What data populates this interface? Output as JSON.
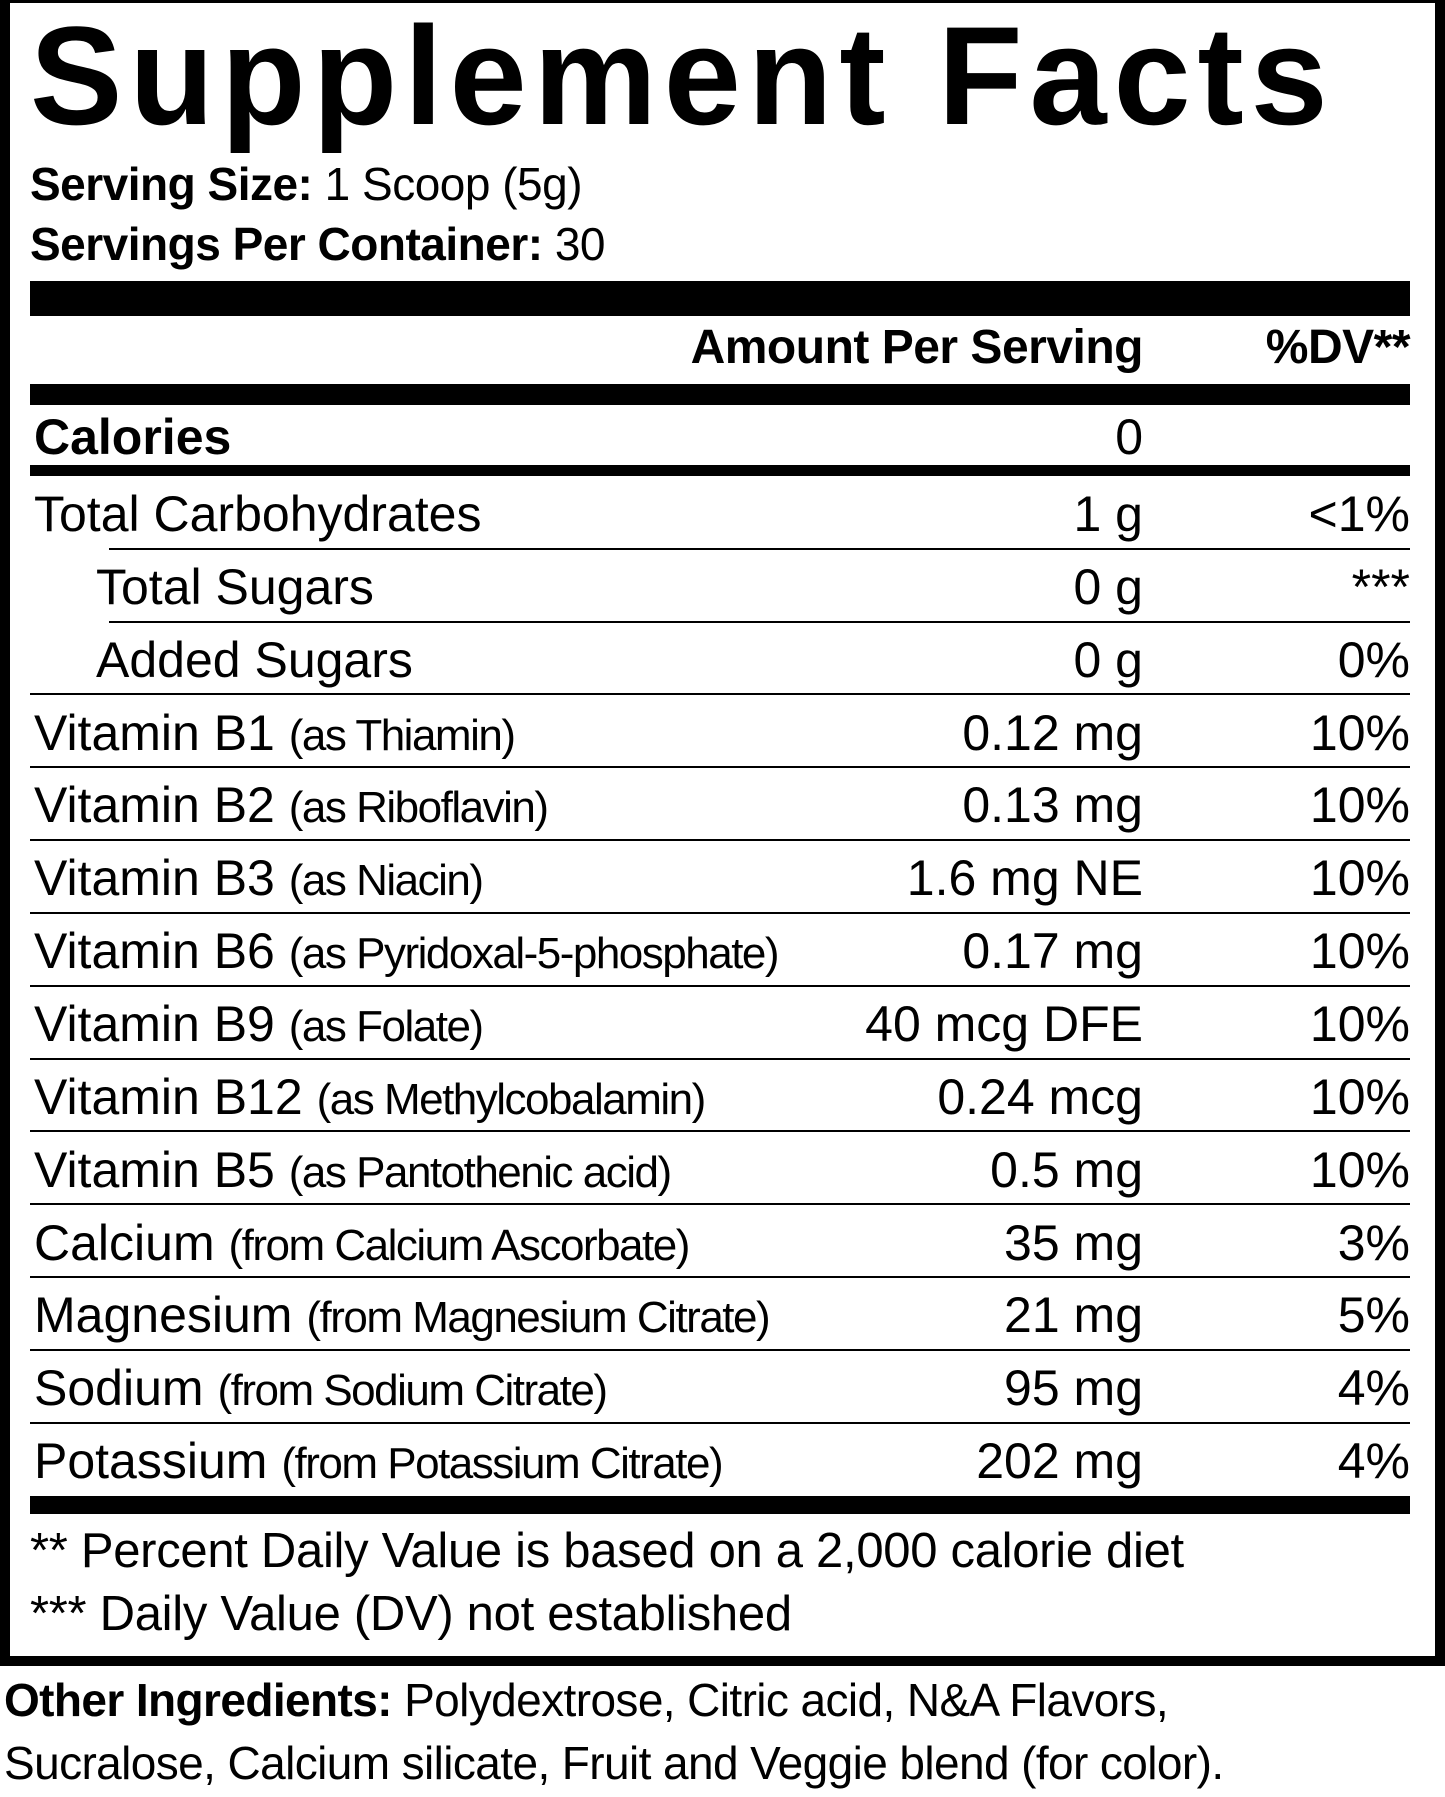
{
  "title": "Supplement Facts",
  "serving": {
    "size_label": "Serving Size:",
    "size_value": "1 Scoop (5g)",
    "per_container_label": "Servings Per Container:",
    "per_container_value": "30"
  },
  "header": {
    "amount": "Amount Per Serving",
    "dv": "%DV**"
  },
  "calories": {
    "label": "Calories",
    "amount": "0"
  },
  "rows": [
    {
      "name": "Total Carbohydrates",
      "sub": "",
      "amount": "1 g",
      "dv": "<1%"
    },
    {
      "name": "Total Sugars",
      "sub": "",
      "amount": "0 g",
      "dv": "***"
    },
    {
      "name": "Added Sugars",
      "sub": "",
      "amount": "0 g",
      "dv": "0%"
    },
    {
      "name": "Vitamin B1",
      "sub": "(as Thiamin)",
      "amount": "0.12 mg",
      "dv": "10%"
    },
    {
      "name": "Vitamin B2",
      "sub": "(as Riboflavin)",
      "amount": "0.13 mg",
      "dv": "10%"
    },
    {
      "name": "Vitamin B3",
      "sub": "(as Niacin)",
      "amount": "1.6 mg NE",
      "dv": "10%"
    },
    {
      "name": "Vitamin B6",
      "sub": "(as Pyridoxal-5-phosphate)",
      "amount": "0.17 mg",
      "dv": "10%"
    },
    {
      "name": "Vitamin B9",
      "sub": "(as Folate)",
      "amount": "40 mcg DFE",
      "dv": "10%"
    },
    {
      "name": "Vitamin B12",
      "sub": "(as Methylcobalamin)",
      "amount": "0.24 mcg",
      "dv": "10%"
    },
    {
      "name": "Vitamin B5",
      "sub": "(as Pantothenic acid)",
      "amount": "0.5 mg",
      "dv": "10%"
    },
    {
      "name": "Calcium",
      "sub": "(from Calcium Ascorbate)",
      "amount": "35 mg",
      "dv": "3%"
    },
    {
      "name": "Magnesium",
      "sub": "(from Magnesium Citrate)",
      "amount": "21 mg",
      "dv": "5%"
    },
    {
      "name": "Sodium",
      "sub": "(from Sodium Citrate)",
      "amount": "95 mg",
      "dv": "4%"
    },
    {
      "name": "Potassium",
      "sub": "(from Potassium Citrate)",
      "amount": "202 mg",
      "dv": "4%"
    }
  ],
  "footnotes": [
    "** Percent Daily Value is based on a 2,000 calorie diet",
    "*** Daily Value (DV) not established"
  ],
  "other_ingredients": {
    "label": "Other Ingredients:",
    "line1": "Polydextrose, Citric acid, N&A Flavors,",
    "line2": "Sucralose, Calcium silicate, Fruit and Veggie blend (for color)."
  }
}
